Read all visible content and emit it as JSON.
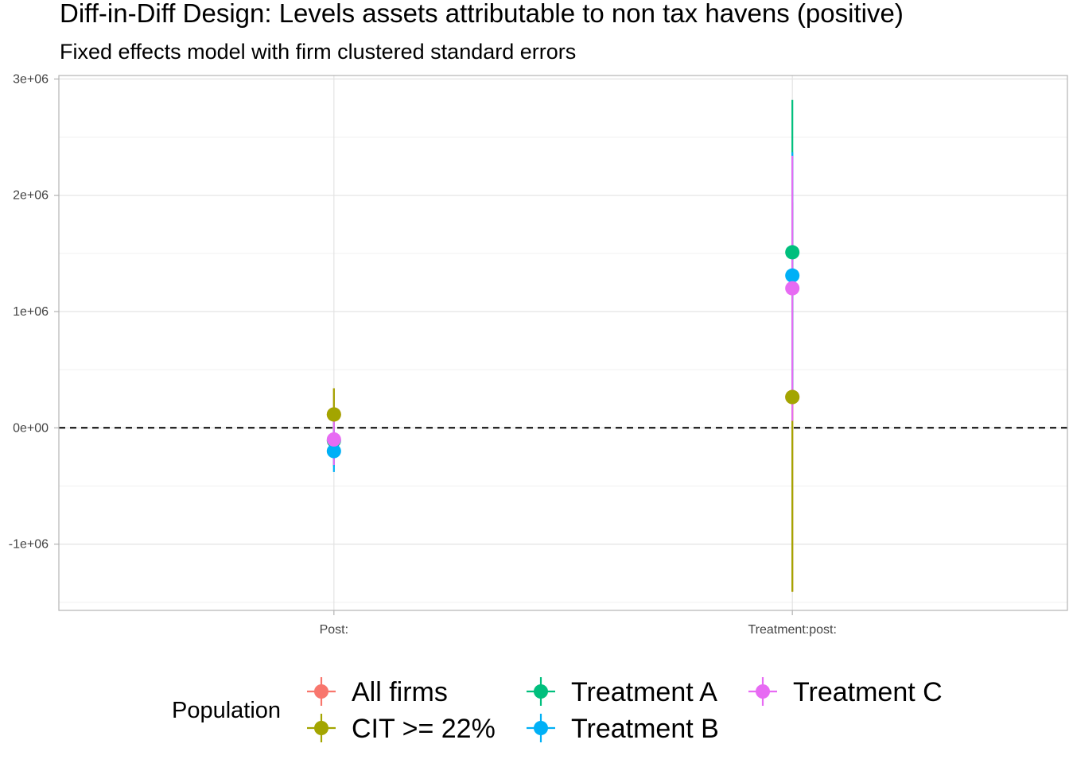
{
  "chart_data": {
    "type": "scatter",
    "title": "Diff-in-Diff Design: Levels assets attributable to non tax havens (positive)",
    "subtitle": "Fixed effects model with firm clustered standard errors",
    "xlabel": "",
    "ylabel": "",
    "categories": [
      "Post:",
      "Treatment:post:"
    ],
    "ylim": [
      -1570000,
      3030000
    ],
    "yticks": [
      {
        "value": -1000000,
        "label": "-1e+06"
      },
      {
        "value": 0,
        "label": "0e+00"
      },
      {
        "value": 1000000,
        "label": "1e+06"
      },
      {
        "value": 2000000,
        "label": "2e+06"
      },
      {
        "value": 3000000,
        "label": "3e+06"
      }
    ],
    "reference_line": 0,
    "grid": true,
    "legend": {
      "title": "Population",
      "position": "bottom"
    },
    "series": [
      {
        "name": "All firms",
        "color": "#F8766D",
        "points": [
          {
            "category": "Post:",
            "estimate": 115000,
            "lower": -115000,
            "upper": 340000
          },
          {
            "category": "Treatment:post:",
            "estimate": 265000,
            "lower": -1410000,
            "upper": 1940000
          }
        ]
      },
      {
        "name": "CIT >= 22%",
        "color": "#A3A500",
        "points": [
          {
            "category": "Post:",
            "estimate": 115000,
            "lower": -115000,
            "upper": 340000
          },
          {
            "category": "Treatment:post:",
            "estimate": 265000,
            "lower": -1410000,
            "upper": 1940000
          }
        ]
      },
      {
        "name": "Treatment A",
        "color": "#00BF7D",
        "points": [
          {
            "category": "Post:",
            "estimate": -110000,
            "lower": -330000,
            "upper": 110000
          },
          {
            "category": "Treatment:post:",
            "estimate": 1510000,
            "lower": 200000,
            "upper": 2820000
          }
        ]
      },
      {
        "name": "Treatment B",
        "color": "#00B0F6",
        "points": [
          {
            "category": "Post:",
            "estimate": -200000,
            "lower": -380000,
            "upper": -20000
          },
          {
            "category": "Treatment:post:",
            "estimate": 1310000,
            "lower": 250000,
            "upper": 2370000
          }
        ]
      },
      {
        "name": "Treatment C",
        "color": "#E76BF3",
        "points": [
          {
            "category": "Post:",
            "estimate": -100000,
            "lower": -320000,
            "upper": 120000
          },
          {
            "category": "Treatment:post:",
            "estimate": 1200000,
            "lower": 60000,
            "upper": 2340000
          }
        ]
      }
    ]
  }
}
